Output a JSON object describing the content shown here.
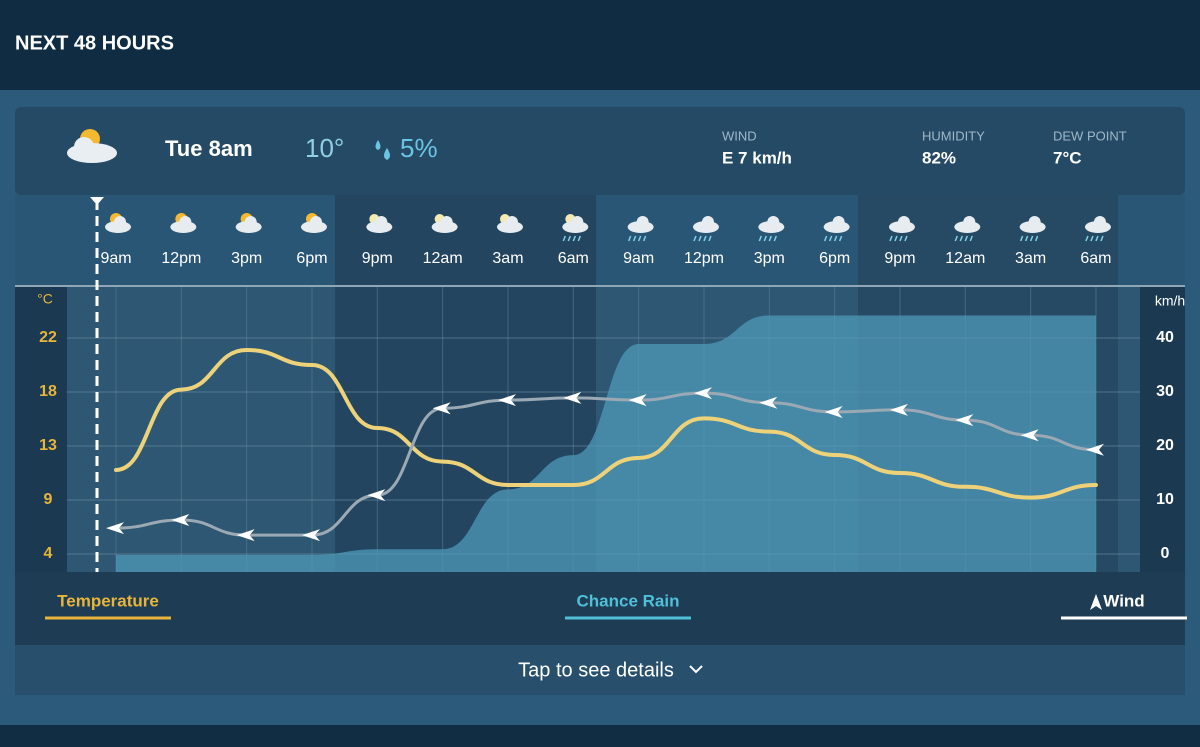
{
  "header": {
    "title": "NEXT 48 HOURS"
  },
  "current": {
    "time": "Tue 8am",
    "temperature": "10°",
    "rain": "5%",
    "wind_label": "WIND",
    "wind": "E 7 km/h",
    "humidity_label": "HUMIDITY",
    "humidity": "82%",
    "dew_point_label": "DEW POINT",
    "dew_point": "7°C"
  },
  "chart_data": {
    "type": "line",
    "categories": [
      "9am",
      "12pm",
      "3pm",
      "6pm",
      "9pm",
      "12am",
      "3am",
      "6am",
      "9am",
      "12pm",
      "3pm",
      "6pm",
      "9pm",
      "12am",
      "3am",
      "6am"
    ],
    "icons": [
      "sun",
      "sun",
      "sun",
      "sun",
      "moon",
      "moon",
      "moon",
      "moon-rain",
      "rain",
      "rain",
      "rain",
      "rain",
      "rain",
      "rain",
      "rain",
      "rain"
    ],
    "y_label": "°C",
    "y2_label": "km/h",
    "ylim": [
      2.5,
      26.25
    ],
    "yticks": [
      4,
      {
        "value": 8.5,
        "label": "9"
      },
      13,
      {
        "value": 17.5,
        "label": "18"
      },
      22
    ],
    "y2lim": [
      -3.33,
      49.44
    ],
    "y2ticks": [
      0,
      10,
      20,
      30,
      40
    ],
    "y3lim": [
      0,
      100
    ],
    "grid": true,
    "series": [
      {
        "name": "Temperature",
        "color": "#eed27a",
        "values": [
          11.0,
          17.7,
          21.0,
          19.75,
          14.5,
          11.7,
          9.75,
          9.75,
          12.0,
          15.3,
          14.2,
          12.25,
          10.75,
          9.6,
          8.7,
          9.75
        ]
      },
      {
        "name": "Chance Rain",
        "color": "#4f9ab8",
        "axis": "y3",
        "values": [
          6,
          6,
          6,
          6,
          8,
          8,
          29,
          41,
          80,
          80,
          90,
          90,
          90,
          90,
          90,
          90
        ]
      },
      {
        "name": "Wind",
        "color": "#ffffff",
        "axis": "y2",
        "values": [
          4.8,
          6.3,
          3.5,
          3.5,
          10.9,
          27.0,
          28.5,
          28.9,
          28.5,
          29.8,
          28.0,
          26.3,
          26.7,
          24.8,
          22.0,
          19.3
        ]
      }
    ]
  },
  "footer": {
    "text": "Tap to see details"
  }
}
